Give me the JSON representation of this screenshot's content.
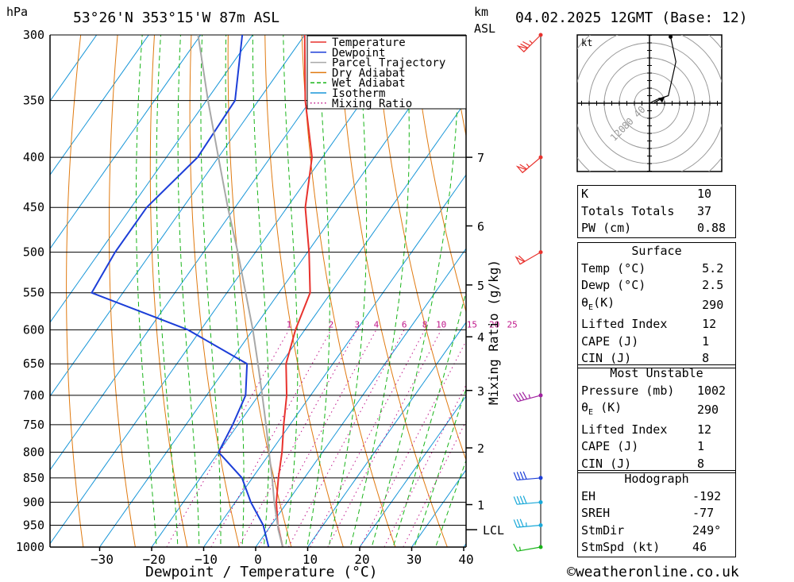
{
  "header": {
    "units_hpa": "hPa",
    "location": "53°26'N  353°15'W  87m  ASL",
    "km_label_1": "km",
    "km_label_2": "ASL",
    "datetime": "04.02.2025  12GMT  (Base: 12)"
  },
  "footer": {
    "copyright": "©weatheronline.co.uk"
  },
  "chart_data": {
    "type": "line",
    "subtype": "skew-T log-P",
    "xlabel": "Dewpoint / Temperature (°C)",
    "ylabel": "hPa",
    "right_axis_label": "Mixing Ratio (g/kg)",
    "x_ticks": [
      -30,
      -20,
      -10,
      0,
      10,
      20,
      30,
      40
    ],
    "pressure_levels": [
      300,
      350,
      400,
      450,
      500,
      550,
      600,
      650,
      700,
      750,
      800,
      850,
      900,
      950,
      1000
    ],
    "pressure_labels": [
      "300",
      "350",
      "400",
      "450",
      "500",
      "550",
      "600",
      "650",
      "700",
      "750",
      "800",
      "850",
      "900",
      "950",
      "1000"
    ],
    "ylim": [
      1000,
      300
    ],
    "xlim_at_1000hPa": [
      -39,
      40
    ],
    "km_ticks": [
      {
        "km": "1",
        "p": 905
      },
      {
        "km": "2",
        "p": 792
      },
      {
        "km": "3",
        "p": 692
      },
      {
        "km": "4",
        "p": 610
      },
      {
        "km": "5",
        "p": 540
      },
      {
        "km": "6",
        "p": 470
      },
      {
        "km": "7",
        "p": 400
      }
    ],
    "lcl": {
      "label": "LCL",
      "p": 960
    },
    "mixing_ratio_labels": [
      "1",
      "2",
      "3",
      "4",
      "6",
      "8",
      "10",
      "15",
      "20",
      "25"
    ],
    "mixing_ratio_label_p": 600,
    "legend": [
      {
        "name": "Temperature",
        "color": "#e8322d",
        "style": "solid"
      },
      {
        "name": "Dewpoint",
        "color": "#1c3ed8",
        "style": "solid"
      },
      {
        "name": "Parcel Trajectory",
        "color": "#a8a8a8",
        "style": "solid"
      },
      {
        "name": "Dry Adiabat",
        "color": "#e07a10",
        "style": "solid"
      },
      {
        "name": "Wet Adiabat",
        "color": "#18b418",
        "style": "dashed"
      },
      {
        "name": "Isotherm",
        "color": "#1896d8",
        "style": "solid"
      },
      {
        "name": "Mixing Ratio",
        "color": "#c0168a",
        "style": "dotted"
      }
    ],
    "series": [
      {
        "name": "Temperature",
        "color": "#e8322d",
        "points": [
          [
            1000,
            5.2
          ],
          [
            950,
            1.3
          ],
          [
            900,
            -2.1
          ],
          [
            850,
            -5.0
          ],
          [
            800,
            -7.8
          ],
          [
            750,
            -11.2
          ],
          [
            700,
            -14.6
          ],
          [
            650,
            -19.0
          ],
          [
            600,
            -21.8
          ],
          [
            550,
            -24.0
          ],
          [
            500,
            -29.7
          ],
          [
            450,
            -36.5
          ],
          [
            400,
            -42.0
          ],
          [
            350,
            -51.0
          ],
          [
            300,
            -60.0
          ]
        ]
      },
      {
        "name": "Dewpoint",
        "color": "#1c3ed8",
        "points": [
          [
            1000,
            2.5
          ],
          [
            950,
            -1.5
          ],
          [
            900,
            -7.0
          ],
          [
            850,
            -12.0
          ],
          [
            800,
            -20.0
          ],
          [
            750,
            -21.0
          ],
          [
            700,
            -22.5
          ],
          [
            650,
            -26.5
          ],
          [
            600,
            -42.5
          ],
          [
            550,
            -66.0
          ],
          [
            500,
            -67.0
          ],
          [
            450,
            -67.0
          ],
          [
            400,
            -64.0
          ],
          [
            350,
            -64.5
          ],
          [
            300,
            -72.0
          ]
        ]
      },
      {
        "name": "Parcel Trajectory",
        "color": "#a8a8a8",
        "points": [
          [
            1000,
            5.2
          ],
          [
            960,
            2.0
          ],
          [
            900,
            -2.5
          ],
          [
            850,
            -6.2
          ],
          [
            800,
            -10.3
          ],
          [
            750,
            -14.6
          ],
          [
            700,
            -19.3
          ],
          [
            650,
            -24.4
          ],
          [
            600,
            -30.0
          ],
          [
            550,
            -36.4
          ],
          [
            500,
            -43.4
          ],
          [
            450,
            -51.4
          ],
          [
            400,
            -60.0
          ],
          [
            350,
            -69.7
          ],
          [
            300,
            -80.5
          ]
        ]
      }
    ],
    "winds": [
      {
        "p": 1000,
        "speed_kt": 15,
        "dir_deg": 260,
        "color": "#18b418"
      },
      {
        "p": 950,
        "speed_kt": 35,
        "dir_deg": 265,
        "color": "#18a8d8"
      },
      {
        "p": 900,
        "speed_kt": 40,
        "dir_deg": 265,
        "color": "#18a8d8"
      },
      {
        "p": 850,
        "speed_kt": 40,
        "dir_deg": 265,
        "color": "#1c3ed8"
      },
      {
        "p": 700,
        "speed_kt": 45,
        "dir_deg": 255,
        "color": "#a020a0"
      },
      {
        "p": 500,
        "speed_kt": 60,
        "dir_deg": 240,
        "color": "#e8322d"
      },
      {
        "p": 400,
        "speed_kt": 65,
        "dir_deg": 230,
        "color": "#e8322d"
      },
      {
        "p": 300,
        "speed_kt": 75,
        "dir_deg": 225,
        "color": "#e8322d"
      }
    ],
    "hodograph": {
      "unit_label": "kt",
      "ring_labels": [
        "40",
        "80",
        "120"
      ],
      "trace": [
        [
          0,
          0
        ],
        [
          10,
          5
        ],
        [
          25,
          10
        ],
        [
          35,
          55
        ],
        [
          28,
          88
        ]
      ],
      "storm_motion": [
        20,
        8
      ]
    }
  },
  "indices": {
    "k": {
      "label": "K",
      "value": "10"
    },
    "tt": {
      "label": "Totals Totals",
      "value": "37"
    },
    "pw": {
      "label": "PW (cm)",
      "value": "0.88"
    },
    "surface": {
      "title": "Surface",
      "temp": {
        "label": "Temp (°C)",
        "value": "5.2"
      },
      "dewp": {
        "label": "Dewp (°C)",
        "value": "2.5"
      },
      "theta_e": {
        "label_sym": "θ",
        "label_sub": "E",
        "label_rest": "(K)",
        "value": "290"
      },
      "li": {
        "label": "Lifted Index",
        "value": "12"
      },
      "cape": {
        "label": "CAPE (J)",
        "value": "1"
      },
      "cin": {
        "label": "CIN (J)",
        "value": "8"
      }
    },
    "most_unstable": {
      "title": "Most Unstable",
      "pressure": {
        "label": "Pressure (mb)",
        "value": "1002"
      },
      "theta_e": {
        "label_sym": "θ",
        "label_sub": "E",
        "label_rest": " (K)",
        "value": "290"
      },
      "li": {
        "label": "Lifted Index",
        "value": "12"
      },
      "cape": {
        "label": "CAPE (J)",
        "value": "1"
      },
      "cin": {
        "label": "CIN (J)",
        "value": "8"
      }
    },
    "hodograph": {
      "title": "Hodograph",
      "eh": {
        "label": "EH",
        "value": "-192"
      },
      "sreh": {
        "label": "SREH",
        "value": "-77"
      },
      "stmdir": {
        "label": "StmDir",
        "value": "249°"
      },
      "stmspd": {
        "label": "StmSpd (kt)",
        "value": "46"
      }
    }
  }
}
